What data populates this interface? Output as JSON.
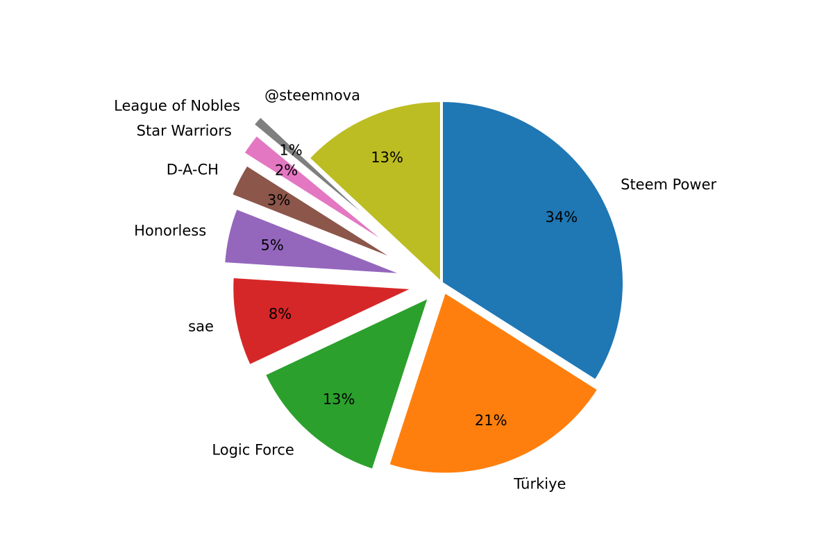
{
  "chart_data": {
    "type": "pie",
    "labels": [
      "Steem Power",
      "Türkiye",
      "Logic Force",
      "sae",
      "Honorless",
      "D-A-CH",
      "Star Warriors",
      "League of Nobles",
      "@steemnova"
    ],
    "values": [
      34,
      21,
      13,
      8,
      5,
      3,
      2,
      1,
      13
    ],
    "percent_labels": [
      "34%",
      "21%",
      "13%",
      "8%",
      "5%",
      "3%",
      "2%",
      "1%",
      "13%"
    ],
    "colors": [
      "#1f77b4",
      "#ff7f0e",
      "#2ca02c",
      "#d62728",
      "#9467bd",
      "#8c564b",
      "#e377c2",
      "#7f7f7f",
      "#bcbd22"
    ],
    "explode": [
      0,
      0.05,
      0.1,
      0.15,
      0.2,
      0.25,
      0.3,
      0.35,
      0
    ],
    "start_angle_deg": 90,
    "direction": "clockwise",
    "title": "",
    "legend": "none"
  }
}
